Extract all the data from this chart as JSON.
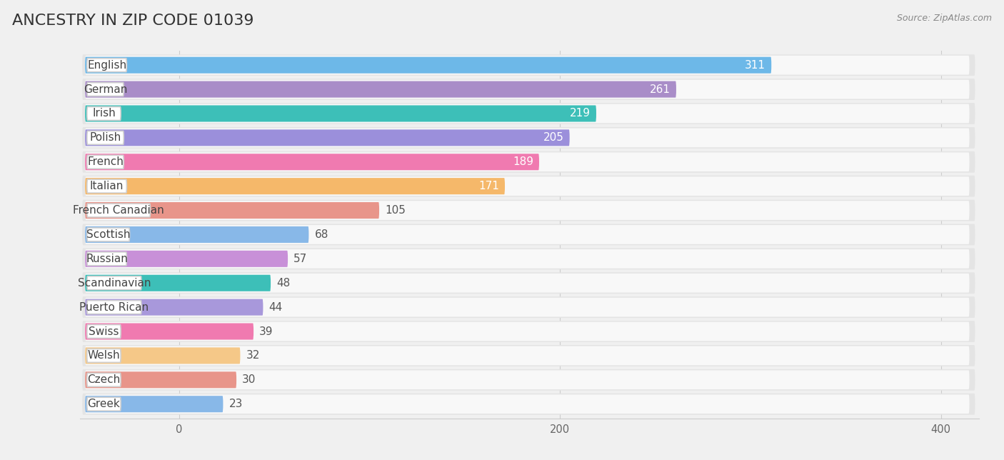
{
  "title": "ANCESTRY IN ZIP CODE 01039",
  "source": "Source: ZipAtlas.com",
  "categories": [
    "English",
    "German",
    "Irish",
    "Polish",
    "French",
    "Italian",
    "French Canadian",
    "Scottish",
    "Russian",
    "Scandinavian",
    "Puerto Rican",
    "Swiss",
    "Welsh",
    "Czech",
    "Greek"
  ],
  "values": [
    311,
    261,
    219,
    205,
    189,
    171,
    105,
    68,
    57,
    48,
    44,
    39,
    32,
    30,
    23
  ],
  "colors": [
    "#6db8e8",
    "#a98dc8",
    "#3dbfb8",
    "#9b8fdb",
    "#f07ab0",
    "#f5b86a",
    "#e8958a",
    "#88b8e8",
    "#c890d8",
    "#3dbfb8",
    "#a898db",
    "#f07ab0",
    "#f5c888",
    "#e8958a",
    "#88b8e8"
  ],
  "xlim_max": 400,
  "background_color": "#f0f0f0",
  "row_bg_color": "#e8e8e8",
  "bar_label_bg": "#ffffff",
  "title_fontsize": 16,
  "label_fontsize": 11,
  "value_fontsize": 11,
  "value_inside_threshold": 150
}
